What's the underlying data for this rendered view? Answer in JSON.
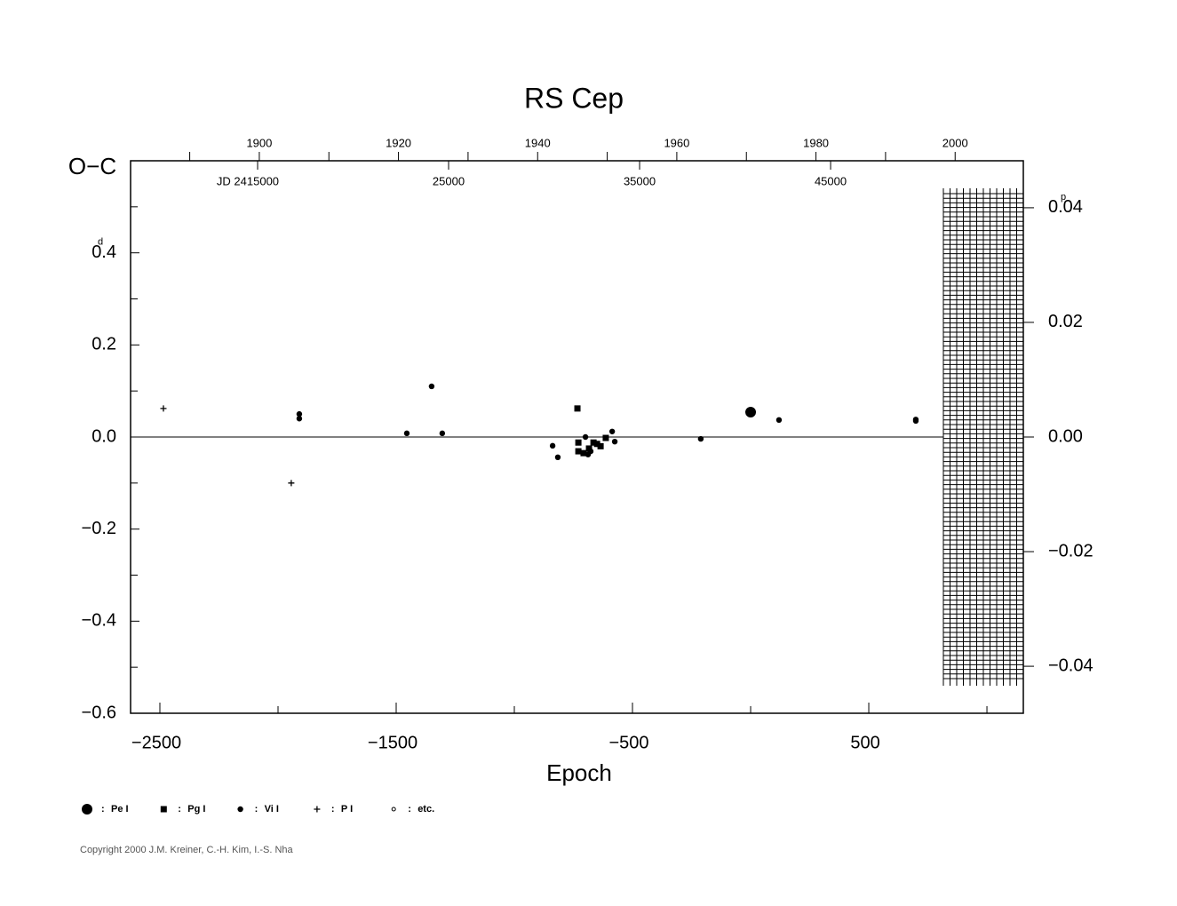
{
  "chart_data": {
    "type": "scatter",
    "title": "RS Cep",
    "xlabel": "Epoch",
    "ylabel": "O−C",
    "y_unit": "d",
    "y2_unit": "p",
    "xlim": [
      -2624,
      1154
    ],
    "xticks": [
      {
        "value": -2500,
        "label": "−2500"
      },
      {
        "value": -1500,
        "label": "−1500"
      },
      {
        "value": -500,
        "label": "−500"
      },
      500
    ],
    "xminor_ticks": [
      -2000,
      -1000,
      0,
      1000
    ],
    "ylim": [
      -0.6,
      0.6
    ],
    "yticks": [
      {
        "value": 0.4,
        "label": "0.4"
      },
      {
        "value": 0.2,
        "label": "0.2"
      },
      {
        "value": 0,
        "label": "0.0"
      },
      {
        "value": -0.2,
        "label": "−0.2"
      },
      {
        "value": -0.4,
        "label": "−0.4"
      },
      {
        "value": -0.6,
        "label": "−0.6"
      }
    ],
    "yminor_ticks": [
      0.5,
      0.3,
      0.1,
      -0.1,
      -0.3,
      -0.5
    ],
    "y2lim": [
      -0.0482,
      0.0482
    ],
    "y2ticks": [
      {
        "value": 0.04,
        "label": "0.04"
      },
      {
        "value": 0.02,
        "label": "0.02"
      },
      {
        "value": 0,
        "label": "0.00"
      },
      {
        "value": -0.02,
        "label": "−0.02"
      },
      {
        "value": -0.04,
        "label": "−0.04"
      }
    ],
    "year_lim": [
      1881.5,
      2009.8
    ],
    "year_ticks": [
      1900,
      1920,
      1940,
      1960,
      1980,
      2000
    ],
    "year_minor_ticks": [
      1890,
      1910,
      1930,
      1950,
      1970,
      1990
    ],
    "jd_lim": [
      8350,
      55090
    ],
    "jd_label": "JD 2415000",
    "jd_label_value": 15000,
    "jd_ticks": [
      25000,
      35000,
      45000
    ],
    "legend_separator": ":",
    "series": [
      {
        "name": "Pe I",
        "marker": "big-circle",
        "color": "#000000",
        "x": [
          0
        ],
        "values": [
          0.054
        ]
      },
      {
        "name": "Pg I",
        "marker": "square",
        "color": "#000000",
        "x": [
          -733,
          -729,
          -729,
          -707,
          -684,
          -665,
          -650,
          -635,
          -613
        ],
        "values": [
          0.062,
          -0.012,
          -0.031,
          -0.035,
          -0.025,
          -0.012,
          -0.015,
          -0.02,
          -0.002
        ]
      },
      {
        "name": "Vi I",
        "marker": "circle",
        "color": "#000000",
        "x": [
          -1910,
          -1910,
          -1455,
          -1350,
          -1305,
          -838,
          -816,
          -699,
          -688,
          -677,
          -586,
          -575,
          -211,
          120,
          699,
          699
        ],
        "values": [
          0.05,
          0.04,
          0.008,
          0.11,
          0.008,
          -0.019,
          -0.044,
          0,
          -0.038,
          -0.031,
          0.012,
          -0.01,
          -0.004,
          0.037,
          0.035,
          0.038
        ]
      },
      {
        "name": "P I",
        "marker": "plus",
        "color": "#000000",
        "x": [
          -2485,
          -1944
        ],
        "values": [
          0.062,
          -0.1
        ]
      },
      {
        "name": "etc.",
        "marker": "ring",
        "color": "#000000",
        "x": [],
        "values": []
      }
    ],
    "copyright": "Copyright 2000 J.M. Kreiner, C.-H. Kim, I.-S. Nha"
  }
}
